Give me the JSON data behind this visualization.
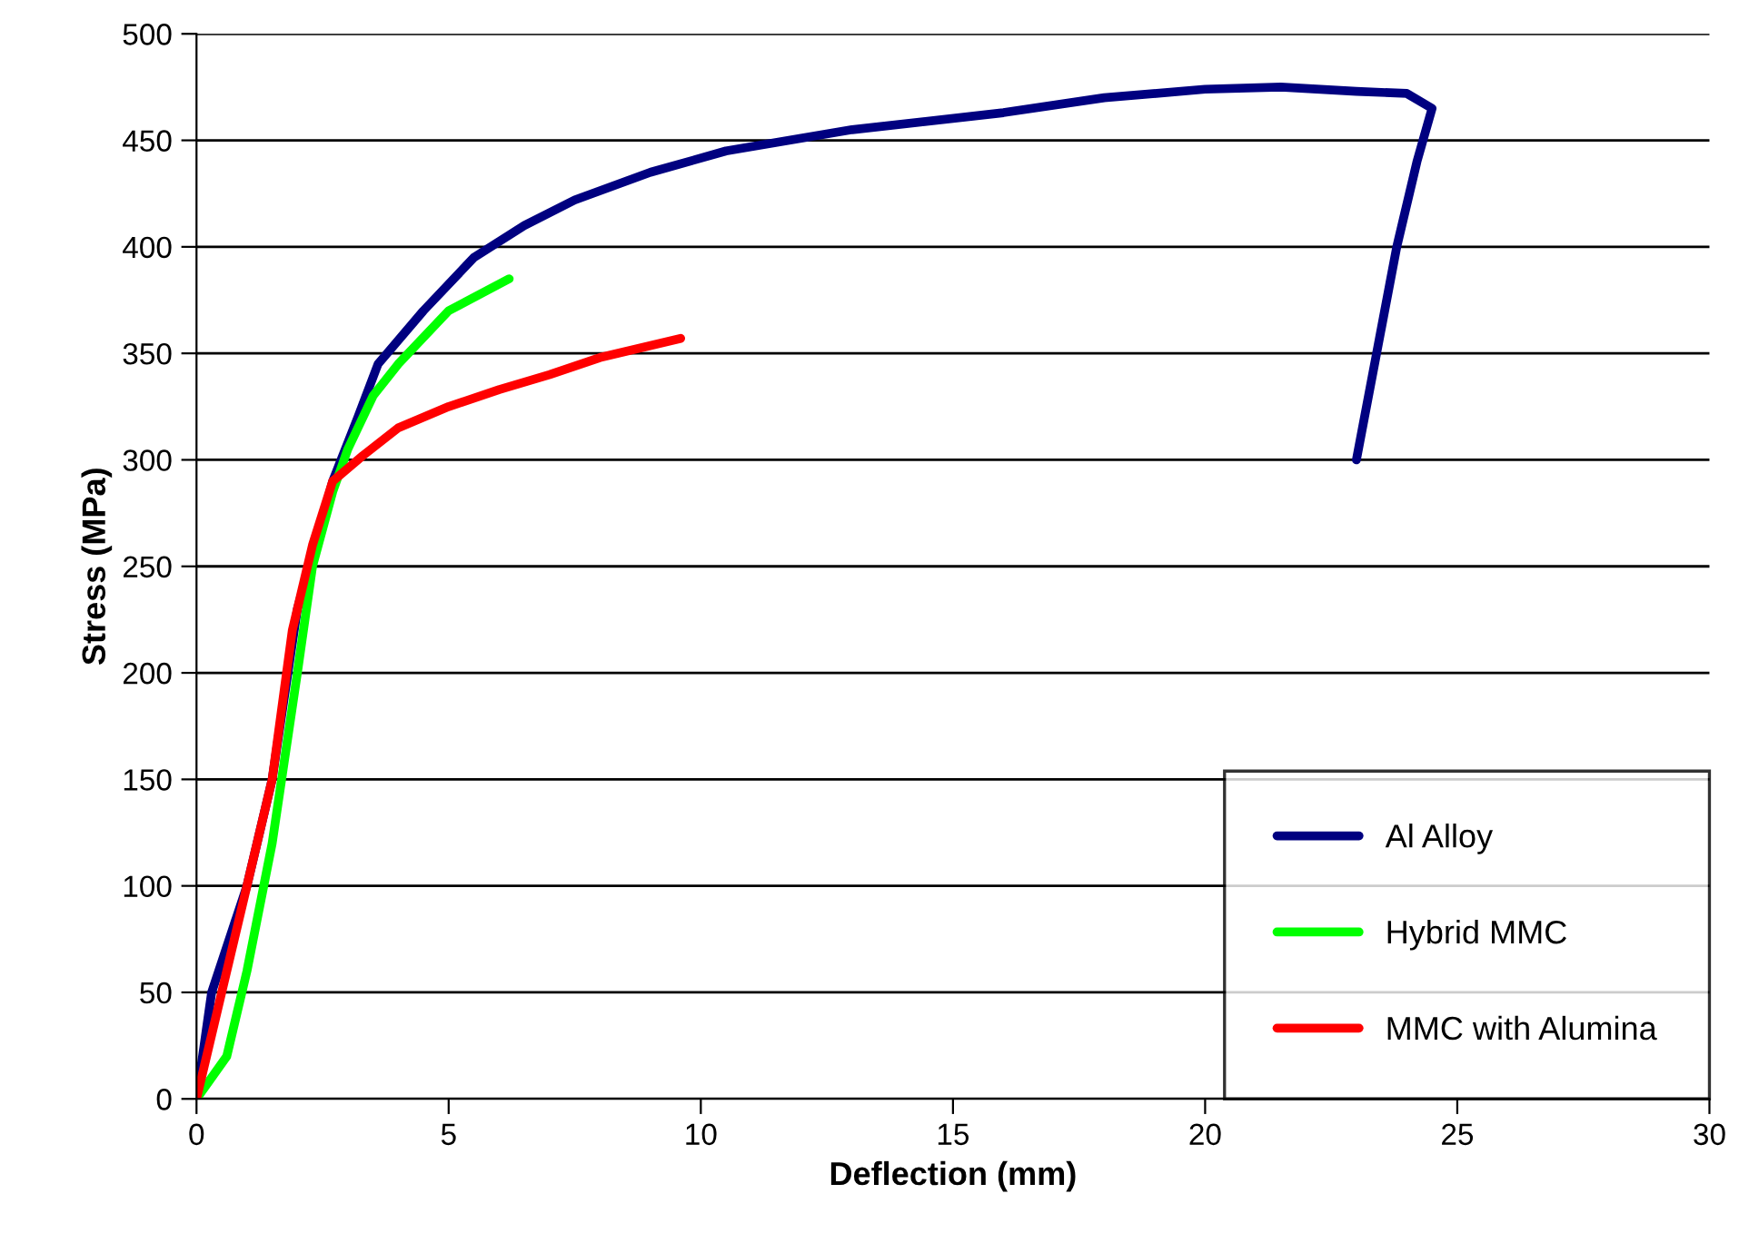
{
  "chart_data": {
    "type": "line",
    "xlabel": "Deflection (mm)",
    "ylabel": "Stress (MPa)",
    "xlim": [
      0,
      30
    ],
    "xticks": [
      0,
      5,
      10,
      15,
      20,
      25,
      30
    ],
    "ylim": [
      0,
      500
    ],
    "yticks": [
      0,
      50,
      100,
      150,
      200,
      250,
      300,
      350,
      400,
      450,
      500
    ],
    "grid": "y",
    "legend": "bottom right",
    "marker": "none",
    "line_style": "solid",
    "series": [
      {
        "name": "Al Alloy",
        "color": "#000080",
        "x": [
          0,
          0.3,
          1,
          1.5,
          2,
          2.7,
          3.2,
          3.6,
          4.5,
          5.5,
          6.5,
          7.5,
          9,
          10.5,
          13,
          16,
          18,
          20,
          21.5,
          23,
          24,
          24.5,
          24.2,
          23.8,
          23.4,
          23
        ],
        "values": [
          0,
          50,
          100,
          150,
          230,
          290,
          320,
          345,
          370,
          395,
          410,
          422,
          435,
          445,
          455,
          463,
          470,
          474,
          475,
          473,
          472,
          465,
          440,
          400,
          350,
          300
        ]
      },
      {
        "name": "Hybrid MMC",
        "color": "#00ff00",
        "x": [
          0,
          0.6,
          1,
          1.5,
          2,
          2.3,
          2.7,
          3,
          3.5,
          4,
          5,
          6.2
        ],
        "values": [
          0,
          20,
          60,
          120,
          200,
          250,
          285,
          305,
          330,
          345,
          370,
          385
        ]
      },
      {
        "name": "MMC with Alumina",
        "color": "#ff0000",
        "x": [
          0,
          0.5,
          1,
          1.5,
          1.9,
          2.3,
          2.7,
          3.3,
          4,
          5,
          6,
          7,
          8,
          9.6
        ],
        "values": [
          0,
          50,
          100,
          150,
          220,
          260,
          290,
          302,
          315,
          325,
          333,
          340,
          348,
          357
        ]
      }
    ]
  }
}
